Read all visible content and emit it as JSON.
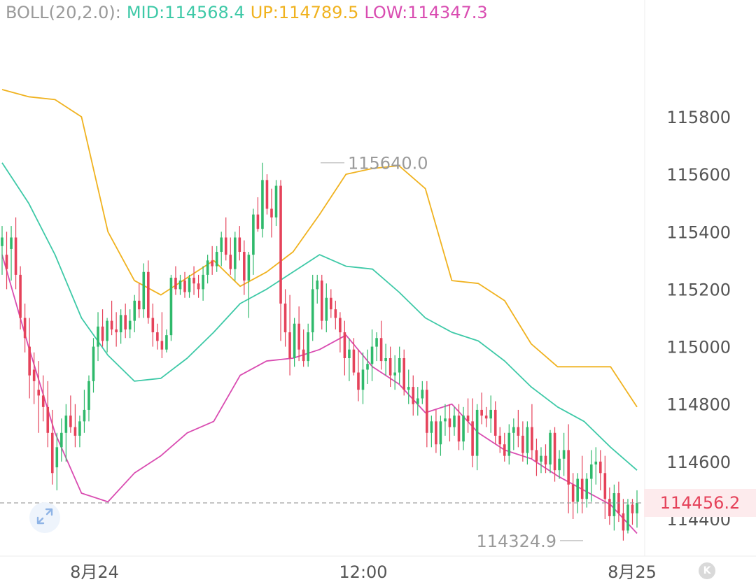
{
  "legend": {
    "indicator": "BOLL(20,2.0):",
    "mid_label": "MID:114568.4",
    "up_label": "UP:114789.5",
    "low_label": "LOW:114347.3"
  },
  "colors": {
    "mid": "#3ec9a7",
    "up": "#f0b21f",
    "low": "#d94cb1",
    "rise": "#2fb96b",
    "fall": "#e5425a",
    "axis_text": "#555555",
    "marker_text": "#9a9a9a"
  },
  "current_price_label": "114456.2",
  "icons": {
    "expand": "expand-icon",
    "logo": "k-logo-icon"
  },
  "logo_letter": "K",
  "chart_data": {
    "type": "candlestick",
    "y_axis": {
      "ticks": [
        114400,
        114600,
        114800,
        115000,
        115200,
        115400,
        115600,
        115800
      ],
      "labels": [
        "114400",
        "114600",
        "114800",
        "115000",
        "115200",
        "115400",
        "115600",
        "115800"
      ]
    },
    "x_labels": [
      "8月24",
      "12:00",
      "8月25"
    ],
    "current_price": 114456.2,
    "high_marker": {
      "value": 115640.0,
      "label": "115640.0"
    },
    "low_marker": {
      "value": 114324.9,
      "label": "114324.9"
    },
    "boll": {
      "up": [
        115895,
        115870,
        115860,
        115800,
        115400,
        115230,
        115180,
        115240,
        115300,
        115210,
        115260,
        115330,
        115460,
        115600,
        115620,
        115630,
        115550,
        115230,
        115220,
        115160,
        115010,
        114930,
        114930,
        114930,
        114790
      ],
      "mid": [
        115640,
        115500,
        115320,
        115100,
        114970,
        114880,
        114890,
        114960,
        115050,
        115150,
        115200,
        115260,
        115320,
        115280,
        115270,
        115190,
        115100,
        115050,
        115020,
        114950,
        114860,
        114790,
        114740,
        114650,
        114570
      ],
      "low": [
        115320,
        115000,
        114700,
        114490,
        114460,
        114560,
        114620,
        114700,
        114740,
        114900,
        114950,
        114960,
        114990,
        115040,
        114930,
        114870,
        114770,
        114800,
        114700,
        114640,
        114610,
        114550,
        114500,
        114450,
        114350
      ]
    },
    "candles": [
      [
        115350,
        115420,
        115250,
        115380
      ],
      [
        115320,
        115400,
        115200,
        115270
      ],
      [
        115340,
        115420,
        115230,
        115380
      ],
      [
        115380,
        115450,
        115200,
        115250
      ],
      [
        115250,
        115280,
        115060,
        115100
      ],
      [
        115100,
        115150,
        114980,
        115030
      ],
      [
        115000,
        115100,
        114820,
        114900
      ],
      [
        114920,
        114980,
        114800,
        114880
      ],
      [
        114850,
        114950,
        114700,
        114830
      ],
      [
        114830,
        114900,
        114740,
        114790
      ],
      [
        114790,
        114880,
        114650,
        114700
      ],
      [
        114700,
        114780,
        114520,
        114560
      ],
      [
        114580,
        114700,
        114500,
        114650
      ],
      [
        114650,
        114750,
        114600,
        114700
      ],
      [
        114700,
        114800,
        114600,
        114760
      ],
      [
        114760,
        114830,
        114700,
        114720
      ],
      [
        114720,
        114800,
        114650,
        114690
      ],
      [
        114690,
        114760,
        114650,
        114740
      ],
      [
        114740,
        114850,
        114700,
        114780
      ],
      [
        114780,
        114900,
        114740,
        114880
      ],
      [
        114880,
        115030,
        114840,
        115000
      ],
      [
        115000,
        115120,
        114950,
        115070
      ],
      [
        115070,
        115130,
        115000,
        115020
      ],
      [
        115020,
        115100,
        114980,
        115090
      ],
      [
        115090,
        115160,
        115040,
        115060
      ],
      [
        115060,
        115120,
        115000,
        115050
      ],
      [
        115050,
        115130,
        115010,
        115110
      ],
      [
        115110,
        115150,
        115030,
        115060
      ],
      [
        115060,
        115130,
        115030,
        115090
      ],
      [
        115090,
        115180,
        115050,
        115160
      ],
      [
        115160,
        115220,
        115100,
        115130
      ],
      [
        115130,
        115290,
        115100,
        115260
      ],
      [
        115260,
        115300,
        115080,
        115100
      ],
      [
        115100,
        115150,
        115000,
        115050
      ],
      [
        115050,
        115080,
        114990,
        115020
      ],
      [
        115020,
        115120,
        114960,
        114990
      ],
      [
        114990,
        115060,
        114980,
        115040
      ],
      [
        115040,
        115250,
        115020,
        115240
      ],
      [
        115240,
        115280,
        115180,
        115200
      ],
      [
        115200,
        115250,
        115180,
        115230
      ],
      [
        115230,
        115260,
        115170,
        115190
      ],
      [
        115190,
        115250,
        115170,
        115240
      ],
      [
        115240,
        115280,
        115180,
        115220
      ],
      [
        115220,
        115250,
        115170,
        115200
      ],
      [
        115200,
        115280,
        115160,
        115250
      ],
      [
        115250,
        115320,
        115220,
        115300
      ],
      [
        115300,
        115350,
        115250,
        115280
      ],
      [
        115280,
        115350,
        115260,
        115330
      ],
      [
        115330,
        115400,
        115280,
        115380
      ],
      [
        115380,
        115450,
        115300,
        115320
      ],
      [
        115320,
        115380,
        115250,
        115270
      ],
      [
        115270,
        115400,
        115230,
        115380
      ],
      [
        115380,
        115420,
        115300,
        115330
      ],
      [
        115330,
        115370,
        115180,
        115230
      ],
      [
        115230,
        115330,
        115100,
        115320
      ],
      [
        115320,
        115480,
        115250,
        115460
      ],
      [
        115460,
        115520,
        115400,
        115410
      ],
      [
        115410,
        115640,
        115380,
        115580
      ],
      [
        115580,
        115600,
        115460,
        115480
      ],
      [
        115480,
        115550,
        115380,
        115450
      ],
      [
        115450,
        115580,
        115420,
        115560
      ],
      [
        115560,
        115580,
        115020,
        115150
      ],
      [
        115150,
        115200,
        115000,
        115050
      ],
      [
        115050,
        115180,
        114900,
        114960
      ],
      [
        114960,
        115100,
        114930,
        115080
      ],
      [
        115080,
        115140,
        114950,
        114990
      ],
      [
        114990,
        115060,
        114930,
        114950
      ],
      [
        114950,
        115080,
        114930,
        115050
      ],
      [
        115050,
        115250,
        115020,
        115200
      ],
      [
        115200,
        115250,
        115150,
        115230
      ],
      [
        115230,
        115250,
        115060,
        115090
      ],
      [
        115090,
        115220,
        115050,
        115170
      ],
      [
        115170,
        115200,
        115100,
        115130
      ],
      [
        115130,
        115160,
        115060,
        115100
      ],
      [
        115100,
        115120,
        114980,
        115050
      ],
      [
        115050,
        115090,
        114900,
        114960
      ],
      [
        114960,
        115030,
        114880,
        114990
      ],
      [
        114990,
        115030,
        114900,
        114910
      ],
      [
        114910,
        114990,
        114810,
        114850
      ],
      [
        114850,
        114980,
        114800,
        114920
      ],
      [
        114920,
        114990,
        114870,
        114940
      ],
      [
        114940,
        115060,
        114880,
        115000
      ],
      [
        115000,
        115050,
        114950,
        115030
      ],
      [
        115030,
        115090,
        114920,
        114950
      ],
      [
        114950,
        115010,
        114900,
        114960
      ],
      [
        114960,
        115000,
        114860,
        114900
      ],
      [
        114900,
        114970,
        114850,
        114910
      ],
      [
        114910,
        115000,
        114870,
        114960
      ],
      [
        114960,
        114990,
        114830,
        114850
      ],
      [
        114850,
        114920,
        114800,
        114860
      ],
      [
        114860,
        114900,
        114760,
        114800
      ],
      [
        114800,
        114860,
        114760,
        114820
      ],
      [
        114820,
        114880,
        114800,
        114850
      ],
      [
        114850,
        114880,
        114650,
        114700
      ],
      [
        114700,
        114760,
        114650,
        114740
      ],
      [
        114740,
        114780,
        114630,
        114660
      ],
      [
        114660,
        114760,
        114620,
        114740
      ],
      [
        114740,
        114800,
        114690,
        114750
      ],
      [
        114750,
        114800,
        114670,
        114720
      ],
      [
        114720,
        114790,
        114690,
        114760
      ],
      [
        114760,
        114800,
        114640,
        114670
      ],
      [
        114670,
        114790,
        114640,
        114760
      ],
      [
        114760,
        114820,
        114700,
        114740
      ],
      [
        114740,
        114820,
        114580,
        114620
      ],
      [
        114620,
        114800,
        114570,
        114780
      ],
      [
        114780,
        114840,
        114730,
        114760
      ],
      [
        114760,
        114790,
        114720,
        114750
      ],
      [
        114750,
        114830,
        114700,
        114780
      ],
      [
        114780,
        114810,
        114660,
        114690
      ],
      [
        114690,
        114720,
        114630,
        114660
      ],
      [
        114660,
        114700,
        114600,
        114620
      ],
      [
        114620,
        114730,
        114590,
        114700
      ],
      [
        114700,
        114750,
        114640,
        114720
      ],
      [
        114720,
        114780,
        114650,
        114690
      ],
      [
        114690,
        114740,
        114600,
        114630
      ],
      [
        114630,
        114740,
        114590,
        114720
      ],
      [
        114720,
        114800,
        114610,
        114640
      ],
      [
        114640,
        114680,
        114550,
        114600
      ],
      [
        114600,
        114650,
        114560,
        114620
      ],
      [
        114620,
        114660,
        114560,
        114590
      ],
      [
        114590,
        114710,
        114560,
        114700
      ],
      [
        114700,
        114720,
        114530,
        114570
      ],
      [
        114570,
        114640,
        114540,
        114610
      ],
      [
        114610,
        114700,
        114550,
        114640
      ],
      [
        114640,
        114730,
        114420,
        114520
      ],
      [
        114520,
        114560,
        114400,
        114460
      ],
      [
        114460,
        114560,
        114420,
        114540
      ],
      [
        114540,
        114620,
        114420,
        114470
      ],
      [
        114470,
        114560,
        114440,
        114540
      ],
      [
        114540,
        114640,
        114460,
        114590
      ],
      [
        114590,
        114650,
        114520,
        114600
      ],
      [
        114600,
        114640,
        114500,
        114560
      ],
      [
        114560,
        114620,
        114400,
        114470
      ],
      [
        114470,
        114510,
        114380,
        114410
      ],
      [
        114410,
        114520,
        114360,
        114490
      ],
      [
        114490,
        114530,
        114390,
        114420
      ],
      [
        114420,
        114470,
        114325,
        114360
      ],
      [
        114360,
        114470,
        114350,
        114450
      ],
      [
        114450,
        114470,
        114380,
        114420
      ],
      [
        114420,
        114500,
        114370,
        114456.2
      ]
    ]
  }
}
